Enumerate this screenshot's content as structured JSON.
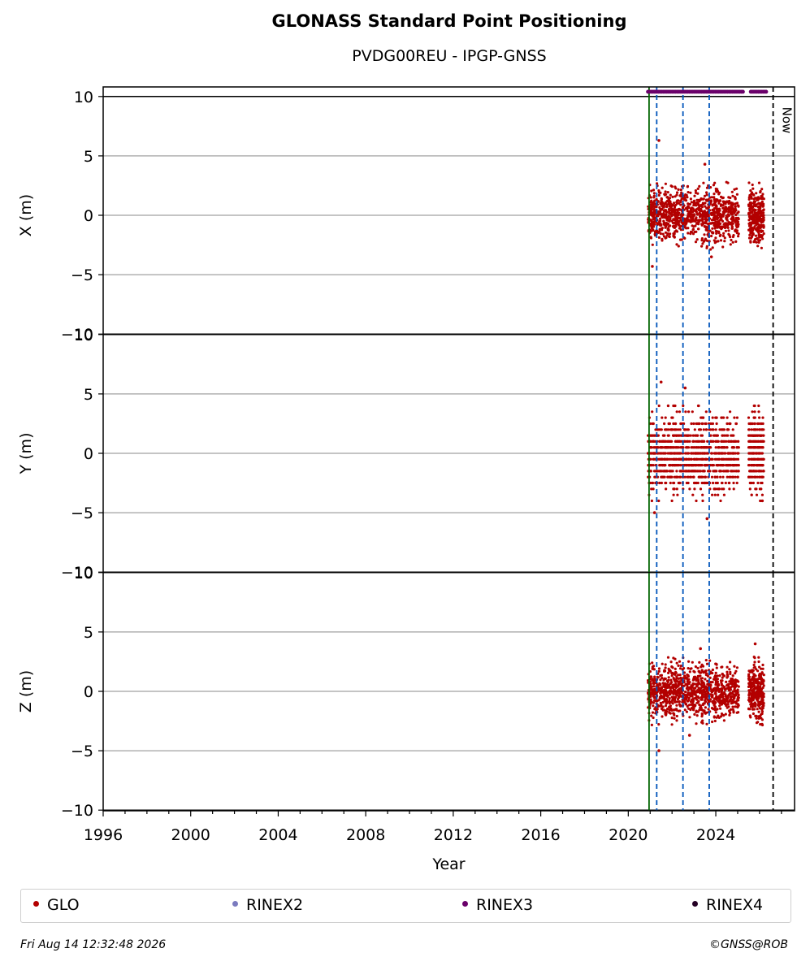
{
  "title": "GLONASS Standard Point Positioning",
  "subtitle": "PVDG00REU - IPGP-GNSS",
  "footer": {
    "timestamp": "Fri Aug 14 12:32:48 2026",
    "credit": "©GNSS@ROB"
  },
  "legend": [
    {
      "label": "GLO",
      "color": "#b30000"
    },
    {
      "label": "RINEX2",
      "color": "#7b7bbf"
    },
    {
      "label": "RINEX3",
      "color": "#6a006a"
    },
    {
      "label": "RINEX4",
      "color": "#250025"
    }
  ],
  "chart_data": {
    "type": "scatter",
    "title": "GLONASS Standard Point Positioning",
    "subtitle": "PVDG00REU - IPGP-GNSS",
    "xlabel": "Year",
    "xlim": [
      1996,
      2027.6
    ],
    "xticks": [
      1996,
      2000,
      2004,
      2008,
      2012,
      2016,
      2020,
      2024
    ],
    "grid": "horizontal",
    "legend_position": "bottom",
    "panels": [
      {
        "ylabel": "X (m)",
        "ylim": [
          -10,
          10
        ],
        "yticks": [
          -10,
          -5,
          0,
          5,
          10
        ],
        "data_span": [
          2020.9,
          2026.2
        ],
        "core_range": [
          -2.5,
          2.5
        ],
        "extremes": [
          {
            "x": 2021.4,
            "y": 6.3
          },
          {
            "x": 2023.5,
            "y": 4.3
          },
          {
            "x": 2021.1,
            "y": -4.3
          },
          {
            "x": 2023.8,
            "y": -3.5
          }
        ]
      },
      {
        "ylabel": "Y (m)",
        "ylim": [
          -10,
          10
        ],
        "yticks": [
          -10,
          -5,
          0,
          5,
          10
        ],
        "data_span": [
          2020.9,
          2026.2
        ],
        "core_range": [
          -3.5,
          3.5
        ],
        "extremes": [
          {
            "x": 2021.5,
            "y": 6.0
          },
          {
            "x": 2022.6,
            "y": 5.5
          },
          {
            "x": 2021.2,
            "y": -5.0
          },
          {
            "x": 2023.6,
            "y": -5.5
          }
        ]
      },
      {
        "ylabel": "Z (m)",
        "ylim": [
          -10,
          10
        ],
        "yticks": [
          -10,
          -5,
          0,
          5,
          10
        ],
        "data_span": [
          2020.9,
          2026.2
        ],
        "core_range": [
          -2.5,
          2.5
        ],
        "extremes": [
          {
            "x": 2023.3,
            "y": 3.6
          },
          {
            "x": 2025.8,
            "y": 4.0
          },
          {
            "x": 2021.4,
            "y": -5.0
          },
          {
            "x": 2022.8,
            "y": -3.7
          }
        ]
      }
    ],
    "series": [
      {
        "name": "GLO",
        "color": "#b30000",
        "marker": "dot"
      },
      {
        "name": "RINEX2",
        "color": "#7b7bbf",
        "marker": "dot"
      },
      {
        "name": "RINEX3",
        "color": "#6a006a",
        "marker": "dot",
        "coverage": [
          [
            2020.9,
            2025.3
          ],
          [
            2025.6,
            2026.3
          ]
        ],
        "y": 10.4
      },
      {
        "name": "RINEX4",
        "color": "#250025",
        "marker": "dot"
      }
    ],
    "vertical_lines": [
      {
        "x": 2020.95,
        "color": "#006400",
        "style": "solid"
      },
      {
        "x": 2021.3,
        "color": "#0055bb",
        "style": "dashed"
      },
      {
        "x": 2022.5,
        "color": "#0055bb",
        "style": "dashed"
      },
      {
        "x": 2023.7,
        "color": "#0055bb",
        "style": "dashed"
      },
      {
        "x": 2026.62,
        "color": "#000000",
        "style": "dashed",
        "label": "Now"
      }
    ]
  }
}
